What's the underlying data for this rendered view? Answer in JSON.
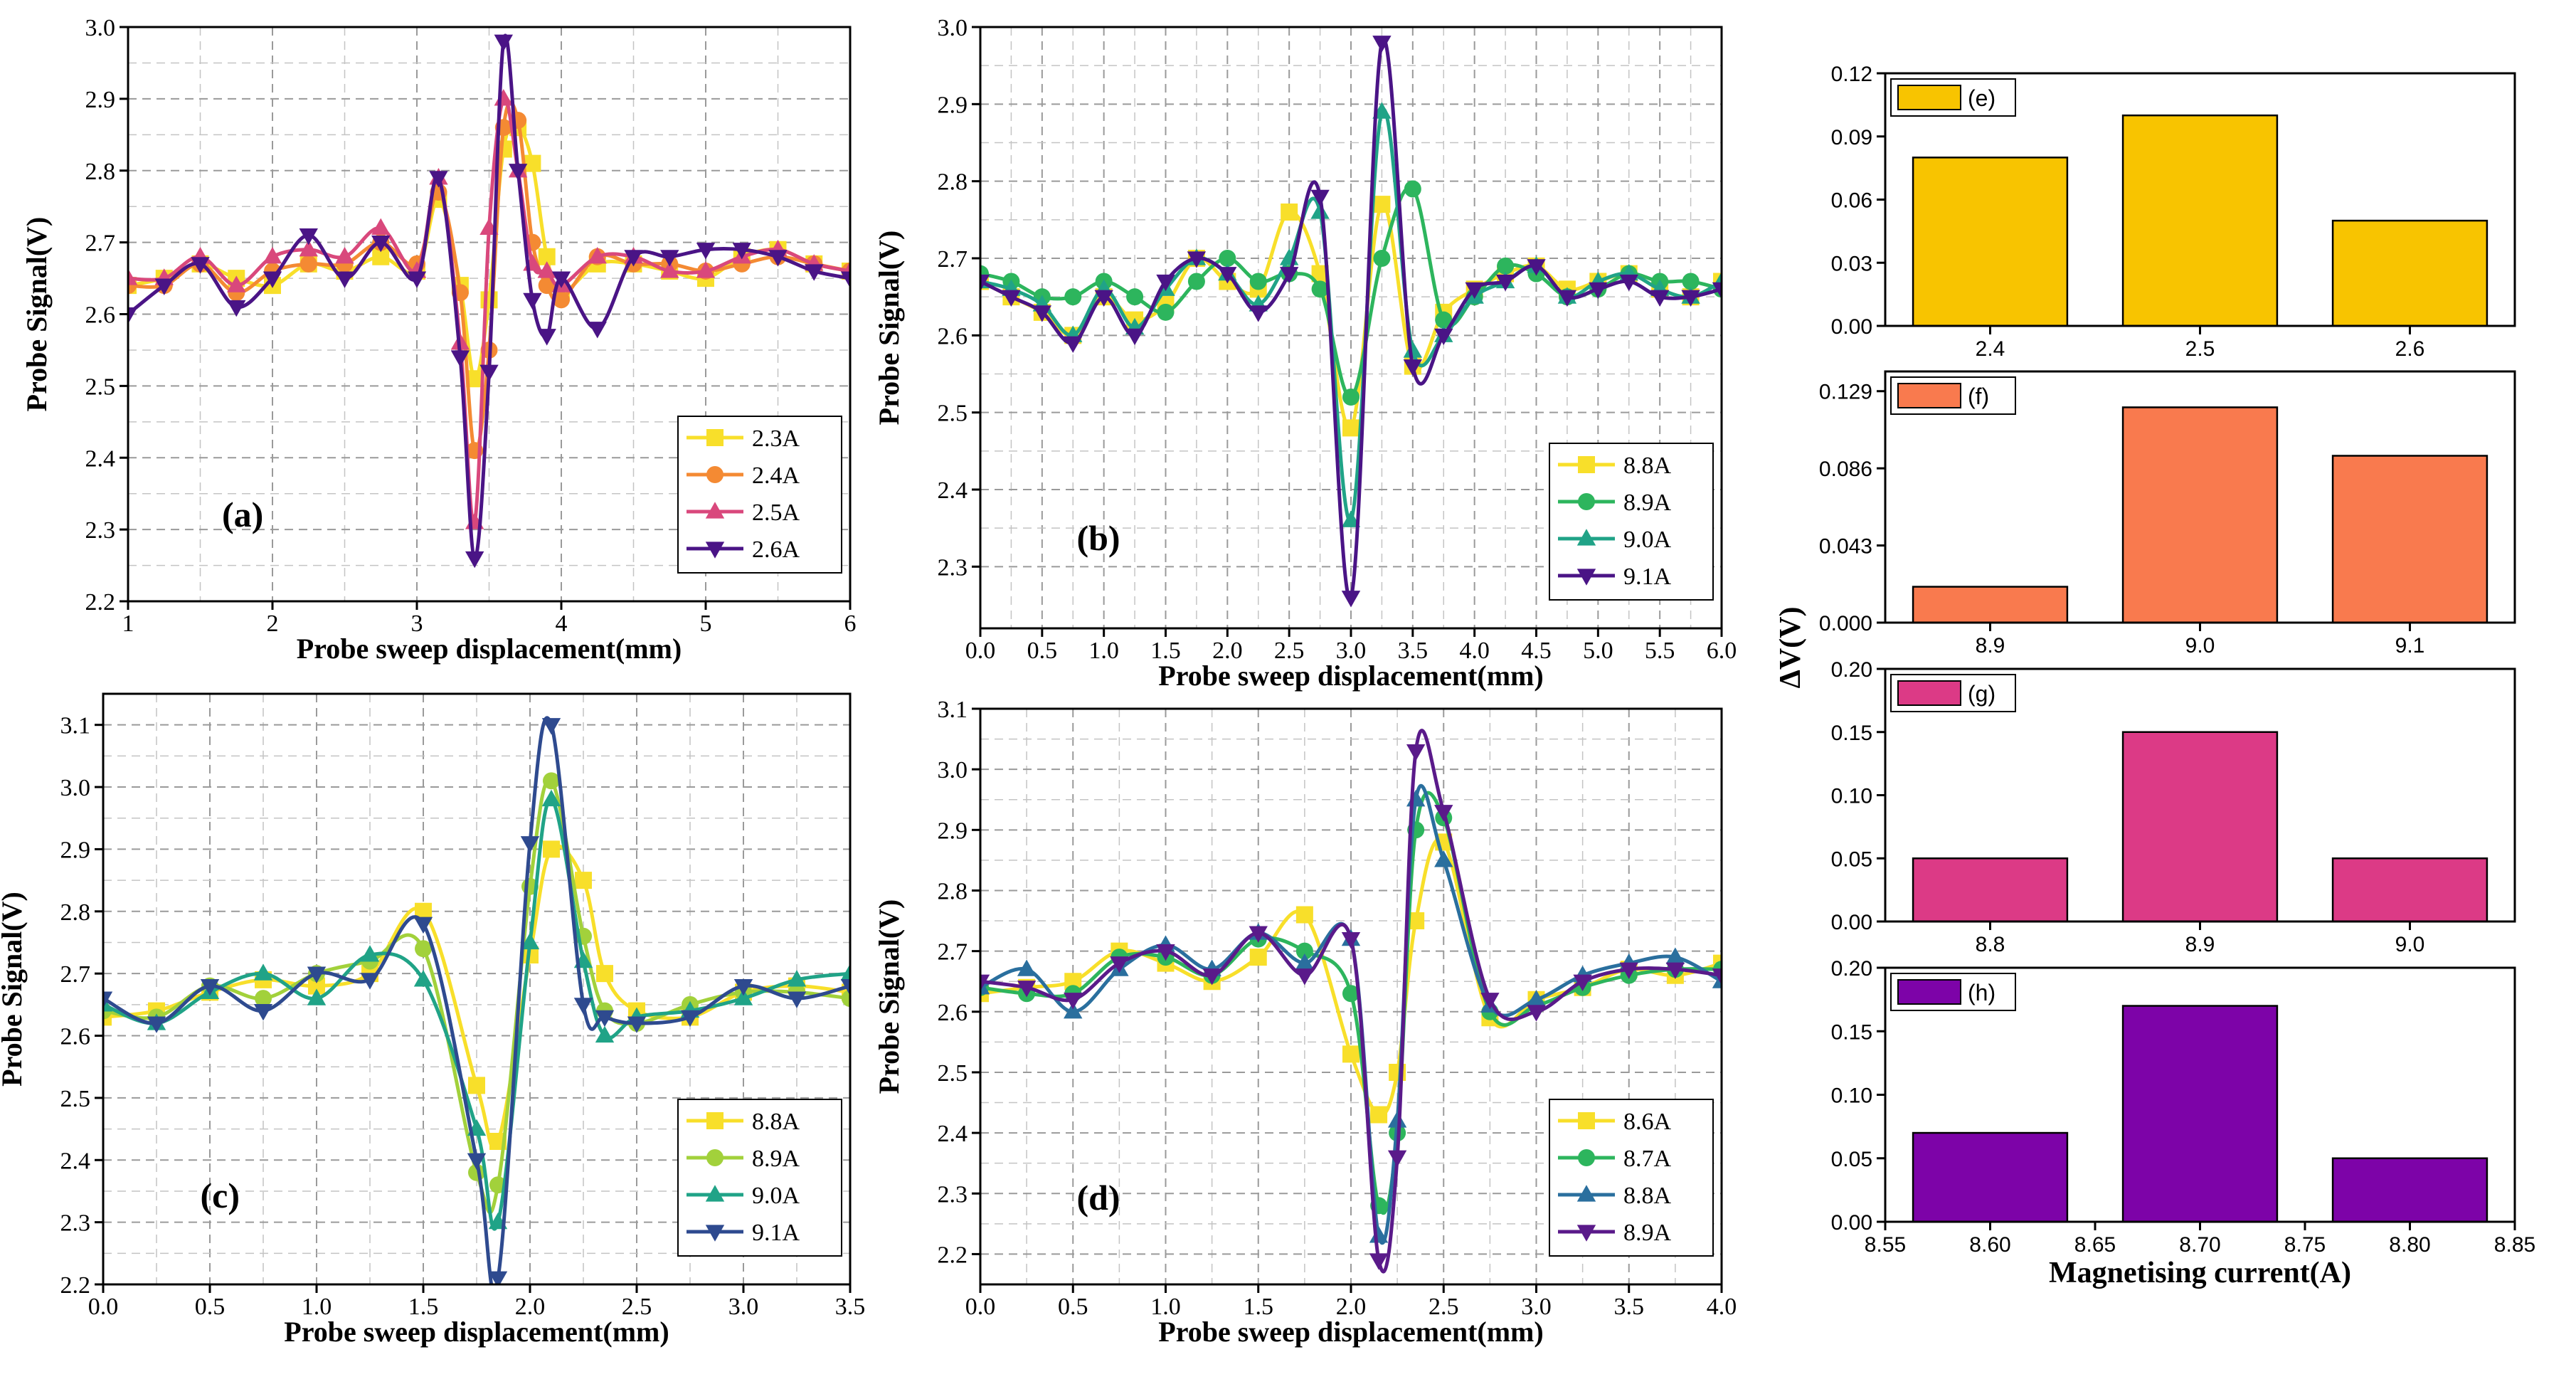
{
  "line_panels": [
    {
      "panel": "(a)",
      "xlabel": "Probe sweep displacement(mm)",
      "ylabel": "Probe Signal(V)",
      "xlim": [
        1,
        6
      ],
      "ylim": [
        2.2,
        3.0
      ],
      "xticks": [
        "1",
        "2",
        "3",
        "4",
        "5",
        "6"
      ],
      "yticks": [
        "2.2",
        "2.3",
        "2.4",
        "2.5",
        "2.6",
        "2.7",
        "2.8",
        "2.9",
        "3.0"
      ],
      "legend": "bottom-right"
    },
    {
      "panel": "(b)",
      "xlabel": "Probe sweep displacement(mm)",
      "ylabel": "Probe Signal(V)",
      "xlim": [
        0,
        6
      ],
      "ylim": [
        2.22,
        3.0
      ],
      "xticks": [
        "0.0",
        "0.5",
        "1.0",
        "1.5",
        "2.0",
        "2.5",
        "3.0",
        "3.5",
        "4.0",
        "4.5",
        "5.0",
        "5.5",
        "6.0"
      ],
      "yticks": [
        "2.3",
        "2.4",
        "2.5",
        "2.6",
        "2.7",
        "2.8",
        "2.9",
        "3.0"
      ],
      "legend": "bottom-right"
    },
    {
      "panel": "(c)",
      "xlabel": "Probe sweep displacement(mm)",
      "ylabel": "Probe Signal(V)",
      "xlim": [
        0,
        3.5
      ],
      "ylim": [
        2.2,
        3.15
      ],
      "xticks": [
        "0.0",
        "0.5",
        "1.0",
        "1.5",
        "2.0",
        "2.5",
        "3.0",
        "3.5"
      ],
      "yticks": [
        "2.2",
        "2.3",
        "2.4",
        "2.5",
        "2.6",
        "2.7",
        "2.8",
        "2.9",
        "3.0",
        "3.1"
      ],
      "legend": "bottom-right"
    },
    {
      "panel": "(d)",
      "xlabel": "Probe sweep displacement(mm)",
      "ylabel": "Probe Signal(V)",
      "xlim": [
        0,
        4
      ],
      "ylim": [
        2.15,
        3.1
      ],
      "xticks": [
        "0.0",
        "0.5",
        "1.0",
        "1.5",
        "2.0",
        "2.5",
        "3.0",
        "3.5",
        "4.0"
      ],
      "yticks": [
        "2.2",
        "2.3",
        "2.4",
        "2.5",
        "2.6",
        "2.7",
        "2.8",
        "2.9",
        "3.0",
        "3.1"
      ],
      "legend": "bottom-right"
    }
  ],
  "bar_panels": [
    {
      "panel": "(e)",
      "color": "#F8C400",
      "yticks": [
        "0.00",
        "0.03",
        "0.06",
        "0.09",
        "0.12"
      ]
    },
    {
      "panel": "(f)",
      "color": "#F97A4E",
      "yticks": [
        "0.000",
        "0.043",
        "0.086",
        "0.129"
      ]
    },
    {
      "panel": "(g)",
      "color": "#DC3A86",
      "yticks": [
        "0.00",
        "0.05",
        "0.10",
        "0.15",
        "0.20"
      ]
    },
    {
      "panel": "(h)",
      "color": "#7D03A8",
      "yticks": [
        "0.00",
        "0.05",
        "0.10",
        "0.15",
        "0.20"
      ],
      "xticks": [
        "8.55",
        "8.60",
        "8.65",
        "8.70",
        "8.75",
        "8.80",
        "8.85"
      ]
    }
  ],
  "shared_bar_ylabel": "ΔV(V)",
  "shared_bar_xlabel": "Magnetising current(A)",
  "chart_data": [
    {
      "type": "line",
      "panel": "(a)",
      "xlim": [
        1,
        6
      ],
      "ylim": [
        2.2,
        3.0
      ],
      "grid": true,
      "series": [
        {
          "name": "2.3A",
          "color": "#F8DF2A",
          "marker": "square",
          "x": [
            1,
            1.25,
            1.5,
            1.75,
            2,
            2.25,
            2.5,
            2.75,
            3,
            3.15,
            3.3,
            3.4,
            3.5,
            3.6,
            3.7,
            3.8,
            3.9,
            4,
            4.25,
            4.5,
            4.75,
            5,
            5.25,
            5.5,
            5.75,
            6
          ],
          "y": [
            2.64,
            2.65,
            2.67,
            2.65,
            2.64,
            2.67,
            2.66,
            2.68,
            2.66,
            2.76,
            2.64,
            2.51,
            2.62,
            2.83,
            2.86,
            2.81,
            2.68,
            2.63,
            2.67,
            2.67,
            2.66,
            2.65,
            2.68,
            2.69,
            2.67,
            2.66
          ]
        },
        {
          "name": "2.4A",
          "color": "#F48A33",
          "marker": "circle",
          "x": [
            1,
            1.25,
            1.5,
            1.75,
            2,
            2.25,
            2.5,
            2.75,
            3,
            3.15,
            3.3,
            3.4,
            3.5,
            3.6,
            3.7,
            3.8,
            3.9,
            4,
            4.25,
            4.5,
            4.75,
            5,
            5.25,
            5.5,
            5.75,
            6
          ],
          "y": [
            2.64,
            2.64,
            2.67,
            2.63,
            2.66,
            2.67,
            2.67,
            2.7,
            2.67,
            2.77,
            2.63,
            2.41,
            2.55,
            2.86,
            2.87,
            2.7,
            2.64,
            2.62,
            2.68,
            2.67,
            2.67,
            2.66,
            2.67,
            2.68,
            2.67,
            2.66
          ]
        },
        {
          "name": "2.5A",
          "color": "#D9487C",
          "marker": "triangle",
          "x": [
            1,
            1.25,
            1.5,
            1.75,
            2,
            2.25,
            2.5,
            2.75,
            3,
            3.15,
            3.3,
            3.4,
            3.5,
            3.6,
            3.7,
            3.8,
            3.9,
            4,
            4.25,
            4.5,
            4.75,
            5,
            5.25,
            5.5,
            5.75,
            6
          ],
          "y": [
            2.65,
            2.65,
            2.68,
            2.64,
            2.68,
            2.69,
            2.68,
            2.72,
            2.66,
            2.79,
            2.56,
            2.31,
            2.72,
            2.9,
            2.8,
            2.67,
            2.66,
            2.64,
            2.68,
            2.68,
            2.66,
            2.66,
            2.68,
            2.69,
            2.67,
            2.66
          ]
        },
        {
          "name": "2.6A",
          "color": "#4A1486",
          "marker": "triangle-down",
          "x": [
            1,
            1.25,
            1.5,
            1.75,
            2,
            2.25,
            2.5,
            2.75,
            3,
            3.15,
            3.3,
            3.4,
            3.5,
            3.6,
            3.7,
            3.8,
            3.9,
            4,
            4.25,
            4.5,
            4.75,
            5,
            5.25,
            5.5,
            5.75,
            6
          ],
          "y": [
            2.6,
            2.64,
            2.67,
            2.61,
            2.65,
            2.71,
            2.65,
            2.7,
            2.65,
            2.79,
            2.54,
            2.26,
            2.52,
            2.98,
            2.8,
            2.62,
            2.57,
            2.65,
            2.58,
            2.68,
            2.68,
            2.69,
            2.69,
            2.68,
            2.66,
            2.65
          ]
        }
      ]
    },
    {
      "type": "line",
      "panel": "(b)",
      "xlim": [
        0,
        6
      ],
      "ylim": [
        2.22,
        3.0
      ],
      "grid": true,
      "series": [
        {
          "name": "8.8A",
          "color": "#F8DF2A",
          "marker": "square",
          "x": [
            0,
            0.25,
            0.5,
            0.75,
            1,
            1.25,
            1.5,
            1.75,
            2,
            2.25,
            2.5,
            2.75,
            3,
            3.25,
            3.5,
            3.75,
            4,
            4.25,
            4.5,
            4.75,
            5,
            5.25,
            5.5,
            5.75,
            6
          ],
          "y": [
            2.67,
            2.65,
            2.63,
            2.6,
            2.65,
            2.62,
            2.64,
            2.7,
            2.67,
            2.66,
            2.76,
            2.68,
            2.48,
            2.77,
            2.56,
            2.63,
            2.66,
            2.68,
            2.69,
            2.66,
            2.67,
            2.68,
            2.66,
            2.65,
            2.67
          ]
        },
        {
          "name": "8.9A",
          "color": "#2DB55D",
          "marker": "circle",
          "x": [
            0,
            0.25,
            0.5,
            0.75,
            1,
            1.25,
            1.5,
            1.75,
            2,
            2.25,
            2.5,
            2.75,
            3,
            3.25,
            3.5,
            3.75,
            4,
            4.25,
            4.5,
            4.75,
            5,
            5.25,
            5.5,
            5.75,
            6
          ],
          "y": [
            2.68,
            2.67,
            2.65,
            2.65,
            2.67,
            2.65,
            2.63,
            2.67,
            2.7,
            2.67,
            2.68,
            2.66,
            2.52,
            2.7,
            2.79,
            2.62,
            2.65,
            2.69,
            2.68,
            2.65,
            2.66,
            2.68,
            2.67,
            2.67,
            2.66
          ]
        },
        {
          "name": "9.0A",
          "color": "#20A387",
          "marker": "triangle",
          "x": [
            0,
            0.25,
            0.5,
            0.75,
            1,
            1.25,
            1.5,
            1.75,
            2,
            2.25,
            2.5,
            2.75,
            3,
            3.25,
            3.5,
            3.75,
            4,
            4.25,
            4.5,
            4.75,
            5,
            5.25,
            5.5,
            5.75,
            6
          ],
          "y": [
            2.67,
            2.66,
            2.64,
            2.6,
            2.66,
            2.61,
            2.66,
            2.7,
            2.68,
            2.64,
            2.7,
            2.76,
            2.36,
            2.89,
            2.58,
            2.6,
            2.65,
            2.67,
            2.69,
            2.65,
            2.67,
            2.68,
            2.66,
            2.65,
            2.67
          ]
        },
        {
          "name": "9.1A",
          "color": "#4A1486",
          "marker": "triangle-down",
          "x": [
            0,
            0.25,
            0.5,
            0.75,
            1,
            1.25,
            1.5,
            1.75,
            2,
            2.25,
            2.5,
            2.75,
            3,
            3.25,
            3.5,
            3.75,
            4,
            4.25,
            4.5,
            4.75,
            5,
            5.25,
            5.5,
            5.75,
            6
          ],
          "y": [
            2.67,
            2.65,
            2.63,
            2.59,
            2.65,
            2.6,
            2.67,
            2.7,
            2.68,
            2.63,
            2.68,
            2.78,
            2.26,
            2.98,
            2.56,
            2.6,
            2.66,
            2.67,
            2.69,
            2.65,
            2.66,
            2.67,
            2.65,
            2.65,
            2.66
          ]
        }
      ]
    },
    {
      "type": "line",
      "panel": "(c)",
      "xlim": [
        0,
        3.5
      ],
      "ylim": [
        2.2,
        3.15
      ],
      "grid": true,
      "series": [
        {
          "name": "8.8A",
          "color": "#F8DF2A",
          "marker": "square",
          "x": [
            0,
            0.25,
            0.5,
            0.75,
            1,
            1.25,
            1.5,
            1.75,
            1.85,
            2,
            2.1,
            2.25,
            2.35,
            2.5,
            2.75,
            3,
            3.25,
            3.5
          ],
          "y": [
            2.63,
            2.64,
            2.67,
            2.69,
            2.68,
            2.7,
            2.8,
            2.52,
            2.43,
            2.73,
            2.9,
            2.85,
            2.7,
            2.64,
            2.63,
            2.67,
            2.68,
            2.67
          ]
        },
        {
          "name": "8.9A",
          "color": "#A2D13B",
          "marker": "circle",
          "x": [
            0,
            0.25,
            0.5,
            0.75,
            1,
            1.25,
            1.5,
            1.75,
            1.85,
            2,
            2.1,
            2.25,
            2.35,
            2.5,
            2.75,
            3,
            3.25,
            3.5
          ],
          "y": [
            2.64,
            2.63,
            2.68,
            2.66,
            2.7,
            2.72,
            2.74,
            2.38,
            2.36,
            2.84,
            3.01,
            2.76,
            2.64,
            2.62,
            2.65,
            2.67,
            2.67,
            2.66
          ]
        },
        {
          "name": "9.0A",
          "color": "#20A387",
          "marker": "triangle",
          "x": [
            0,
            0.25,
            0.5,
            0.75,
            1,
            1.25,
            1.5,
            1.75,
            1.85,
            2,
            2.1,
            2.25,
            2.35,
            2.5,
            2.75,
            3,
            3.25,
            3.5
          ],
          "y": [
            2.65,
            2.62,
            2.67,
            2.7,
            2.66,
            2.73,
            2.69,
            2.45,
            2.3,
            2.75,
            2.98,
            2.72,
            2.6,
            2.63,
            2.64,
            2.66,
            2.69,
            2.7
          ]
        },
        {
          "name": "9.1A",
          "color": "#2E4A8F",
          "marker": "triangle-down",
          "x": [
            0,
            0.25,
            0.5,
            0.75,
            1,
            1.25,
            1.5,
            1.75,
            1.85,
            2,
            2.1,
            2.25,
            2.35,
            2.5,
            2.75,
            3,
            3.25,
            3.5
          ],
          "y": [
            2.66,
            2.62,
            2.68,
            2.64,
            2.7,
            2.69,
            2.78,
            2.4,
            2.21,
            2.91,
            3.1,
            2.65,
            2.63,
            2.62,
            2.63,
            2.68,
            2.66,
            2.68
          ]
        }
      ]
    },
    {
      "type": "line",
      "panel": "(d)",
      "xlim": [
        0,
        4
      ],
      "ylim": [
        2.15,
        3.1
      ],
      "grid": true,
      "series": [
        {
          "name": "8.6A",
          "color": "#F8DF2A",
          "marker": "square",
          "x": [
            0,
            0.25,
            0.5,
            0.75,
            1,
            1.25,
            1.5,
            1.75,
            2,
            2.15,
            2.25,
            2.35,
            2.5,
            2.75,
            3,
            3.25,
            3.5,
            3.75,
            4
          ],
          "y": [
            2.63,
            2.64,
            2.65,
            2.7,
            2.68,
            2.65,
            2.69,
            2.76,
            2.53,
            2.43,
            2.5,
            2.75,
            2.88,
            2.59,
            2.62,
            2.64,
            2.67,
            2.66,
            2.68
          ]
        },
        {
          "name": "8.7A",
          "color": "#2DB55D",
          "marker": "circle",
          "x": [
            0,
            0.25,
            0.5,
            0.75,
            1,
            1.25,
            1.5,
            1.75,
            2,
            2.15,
            2.25,
            2.35,
            2.5,
            2.75,
            3,
            3.25,
            3.5,
            3.75,
            4
          ],
          "y": [
            2.64,
            2.63,
            2.63,
            2.69,
            2.69,
            2.66,
            2.72,
            2.7,
            2.63,
            2.28,
            2.4,
            2.9,
            2.92,
            2.6,
            2.61,
            2.64,
            2.66,
            2.67,
            2.67
          ]
        },
        {
          "name": "8.8A",
          "color": "#2A6F9E",
          "marker": "triangle",
          "x": [
            0,
            0.25,
            0.5,
            0.75,
            1,
            1.25,
            1.5,
            1.75,
            2,
            2.15,
            2.25,
            2.35,
            2.5,
            2.75,
            3,
            3.25,
            3.5,
            3.75,
            4
          ],
          "y": [
            2.64,
            2.67,
            2.6,
            2.67,
            2.71,
            2.67,
            2.73,
            2.68,
            2.72,
            2.23,
            2.42,
            2.95,
            2.85,
            2.61,
            2.62,
            2.66,
            2.68,
            2.69,
            2.65
          ]
        },
        {
          "name": "8.9A",
          "color": "#5A1A8A",
          "marker": "triangle-down",
          "x": [
            0,
            0.25,
            0.5,
            0.75,
            1,
            1.25,
            1.5,
            1.75,
            2,
            2.15,
            2.25,
            2.35,
            2.5,
            2.75,
            3,
            3.25,
            3.5,
            3.75,
            4
          ],
          "y": [
            2.65,
            2.64,
            2.62,
            2.68,
            2.7,
            2.66,
            2.73,
            2.66,
            2.72,
            2.19,
            2.36,
            3.03,
            2.93,
            2.62,
            2.6,
            2.65,
            2.67,
            2.67,
            2.66
          ]
        }
      ]
    },
    {
      "type": "bar",
      "panel": "(e)",
      "categories": [
        "2.4",
        "2.5",
        "2.6"
      ],
      "values": [
        0.08,
        0.1,
        0.05
      ],
      "ylim": [
        0,
        0.12
      ]
    },
    {
      "type": "bar",
      "panel": "(f)",
      "categories": [
        "8.9",
        "9.0",
        "9.1"
      ],
      "values": [
        0.02,
        0.12,
        0.093
      ],
      "ylim": [
        0,
        0.14
      ]
    },
    {
      "type": "bar",
      "panel": "(g)",
      "categories": [
        "8.8",
        "8.9",
        "9.0"
      ],
      "values": [
        0.05,
        0.15,
        0.05
      ],
      "ylim": [
        0,
        0.2
      ]
    },
    {
      "type": "bar",
      "panel": "(h)",
      "x": [
        8.6,
        8.7,
        8.8
      ],
      "values": [
        0.07,
        0.17,
        0.05
      ],
      "xlim": [
        8.55,
        8.85
      ],
      "ylim": [
        0,
        0.2
      ]
    }
  ]
}
